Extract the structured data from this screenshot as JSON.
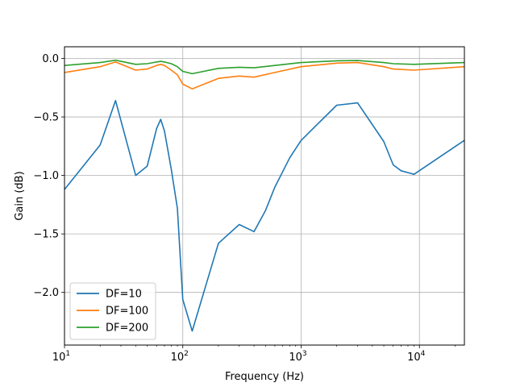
{
  "chart_data": {
    "type": "line",
    "title": "",
    "xlabel": "Frequency (Hz)",
    "ylabel": "Gain (dB)",
    "xscale": "log",
    "xlim": [
      10,
      24000
    ],
    "ylim": [
      -2.45,
      0.1
    ],
    "grid": true,
    "legend_position": "lower-left",
    "x_ticks": [
      {
        "value": 10,
        "base": "10",
        "exp": "1"
      },
      {
        "value": 100,
        "base": "10",
        "exp": "2"
      },
      {
        "value": 1000,
        "base": "10",
        "exp": "3"
      },
      {
        "value": 10000,
        "base": "10",
        "exp": "4"
      }
    ],
    "y_ticks": [
      {
        "value": 0.0,
        "label": "0.0"
      },
      {
        "value": -0.5,
        "label": "−0.5"
      },
      {
        "value": -1.0,
        "label": "−1.0"
      },
      {
        "value": -1.5,
        "label": "−1.5"
      },
      {
        "value": -2.0,
        "label": "−2.0"
      }
    ],
    "series": [
      {
        "name": "DF=10",
        "color": "#1f77b4",
        "points": [
          [
            10,
            -1.12
          ],
          [
            20,
            -0.74
          ],
          [
            27,
            -0.36
          ],
          [
            40,
            -1.0
          ],
          [
            50,
            -0.92
          ],
          [
            60,
            -0.6
          ],
          [
            65,
            -0.52
          ],
          [
            70,
            -0.62
          ],
          [
            80,
            -0.95
          ],
          [
            90,
            -1.28
          ],
          [
            100,
            -2.06
          ],
          [
            120,
            -2.33
          ],
          [
            200,
            -1.58
          ],
          [
            300,
            -1.42
          ],
          [
            400,
            -1.48
          ],
          [
            500,
            -1.3
          ],
          [
            600,
            -1.1
          ],
          [
            800,
            -0.85
          ],
          [
            1000,
            -0.7
          ],
          [
            2000,
            -0.4
          ],
          [
            3000,
            -0.38
          ],
          [
            5000,
            -0.71
          ],
          [
            6000,
            -0.91
          ],
          [
            7000,
            -0.96
          ],
          [
            9000,
            -0.99
          ],
          [
            24000,
            -0.7
          ]
        ]
      },
      {
        "name": "DF=100",
        "color": "#ff7f0e",
        "points": [
          [
            10,
            -0.12
          ],
          [
            20,
            -0.07
          ],
          [
            27,
            -0.03
          ],
          [
            40,
            -0.1
          ],
          [
            50,
            -0.09
          ],
          [
            60,
            -0.06
          ],
          [
            65,
            -0.05
          ],
          [
            70,
            -0.06
          ],
          [
            80,
            -0.1
          ],
          [
            90,
            -0.14
          ],
          [
            100,
            -0.22
          ],
          [
            120,
            -0.26
          ],
          [
            200,
            -0.17
          ],
          [
            300,
            -0.15
          ],
          [
            400,
            -0.16
          ],
          [
            600,
            -0.12
          ],
          [
            1000,
            -0.07
          ],
          [
            2000,
            -0.04
          ],
          [
            3000,
            -0.035
          ],
          [
            5000,
            -0.07
          ],
          [
            6000,
            -0.09
          ],
          [
            9000,
            -0.1
          ],
          [
            24000,
            -0.07
          ]
        ]
      },
      {
        "name": "DF=200",
        "color": "#2ca02c",
        "points": [
          [
            10,
            -0.06
          ],
          [
            20,
            -0.035
          ],
          [
            27,
            -0.015
          ],
          [
            40,
            -0.05
          ],
          [
            50,
            -0.045
          ],
          [
            60,
            -0.03
          ],
          [
            65,
            -0.025
          ],
          [
            70,
            -0.03
          ],
          [
            80,
            -0.045
          ],
          [
            90,
            -0.07
          ],
          [
            100,
            -0.11
          ],
          [
            120,
            -0.13
          ],
          [
            200,
            -0.085
          ],
          [
            300,
            -0.075
          ],
          [
            400,
            -0.08
          ],
          [
            600,
            -0.06
          ],
          [
            1000,
            -0.035
          ],
          [
            2000,
            -0.02
          ],
          [
            3000,
            -0.018
          ],
          [
            5000,
            -0.035
          ],
          [
            6000,
            -0.045
          ],
          [
            9000,
            -0.05
          ],
          [
            24000,
            -0.035
          ]
        ]
      }
    ]
  }
}
